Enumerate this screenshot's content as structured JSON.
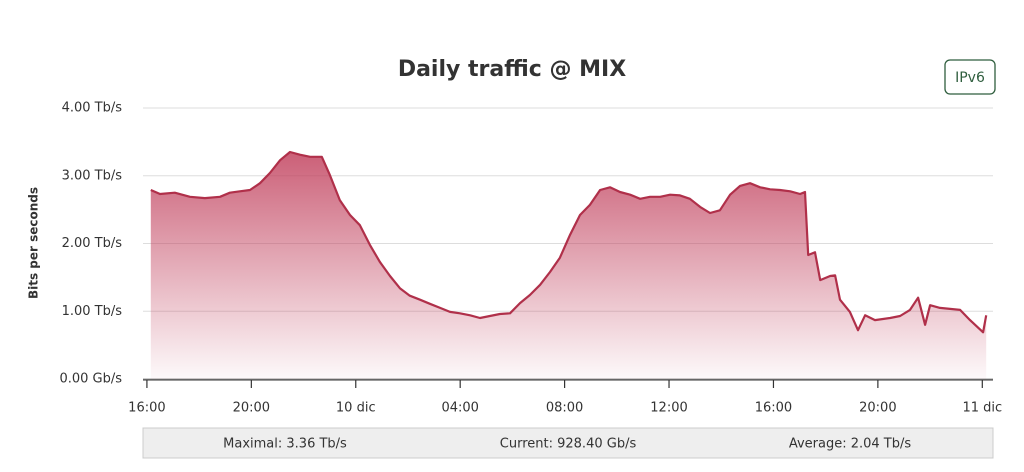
{
  "chart_data": {
    "type": "area",
    "title": "Daily traffic @ MIX",
    "badge": "IPv6",
    "ylabel": "Bits per seconds",
    "color": "#b0304a",
    "x": [
      0.15,
      0.5,
      1.07,
      1.65,
      2.22,
      2.8,
      3.18,
      3.56,
      3.95,
      4.33,
      4.71,
      5.1,
      5.48,
      5.86,
      6.25,
      6.7,
      7.01,
      7.39,
      7.78,
      8.16,
      8.54,
      8.92,
      9.31,
      9.69,
      10.07,
      10.46,
      10.84,
      11.23,
      11.61,
      11.99,
      12.38,
      12.76,
      13.14,
      13.52,
      13.91,
      14.29,
      14.67,
      15.06,
      15.44,
      15.82,
      16.21,
      16.59,
      16.97,
      17.36,
      17.74,
      18.12,
      18.51,
      18.89,
      19.27,
      19.66,
      20.04,
      20.42,
      20.8,
      21.19,
      21.57,
      21.95,
      22.34,
      22.72,
      23.1,
      23.49,
      23.87,
      24.25,
      24.64,
      25.02,
      25.21,
      25.33,
      25.59,
      25.79,
      26.17,
      26.36,
      26.55,
      26.93,
      27.24,
      27.51,
      27.89,
      28.47,
      28.85,
      29.23,
      29.54,
      29.81,
      30.0,
      30.38,
      31.15,
      31.53,
      32.03,
      32.15
    ],
    "values": [
      2.79,
      2.73,
      2.75,
      2.69,
      2.67,
      2.69,
      2.75,
      2.77,
      2.79,
      2.89,
      3.04,
      3.23,
      3.35,
      3.31,
      3.28,
      3.28,
      3.01,
      2.64,
      2.42,
      2.27,
      1.98,
      1.73,
      1.52,
      1.34,
      1.23,
      1.17,
      1.11,
      1.05,
      0.99,
      0.97,
      0.94,
      0.9,
      0.93,
      0.96,
      0.97,
      1.12,
      1.24,
      1.39,
      1.58,
      1.79,
      2.13,
      2.42,
      2.57,
      2.79,
      2.83,
      2.76,
      2.72,
      2.66,
      2.69,
      2.69,
      2.72,
      2.71,
      2.66,
      2.54,
      2.45,
      2.49,
      2.72,
      2.85,
      2.89,
      2.83,
      2.8,
      2.79,
      2.77,
      2.73,
      2.76,
      1.83,
      1.87,
      1.46,
      1.52,
      1.53,
      1.17,
      0.99,
      0.72,
      0.94,
      0.87,
      0.9,
      0.93,
      1.02,
      1.2,
      0.8,
      1.09,
      1.05,
      1.02,
      0.87,
      0.69,
      0.94
    ],
    "xlim": [
      -0.15,
      32.41
    ],
    "xticks": [
      {
        "value": 0,
        "label": "16:00"
      },
      {
        "value": 4,
        "label": "20:00"
      },
      {
        "value": 8,
        "label": "10 dic"
      },
      {
        "value": 12,
        "label": "04:00"
      },
      {
        "value": 16,
        "label": "08:00"
      },
      {
        "value": 20,
        "label": "12:00"
      },
      {
        "value": 24,
        "label": "16:00"
      },
      {
        "value": 28,
        "label": "20:00"
      },
      {
        "value": 32,
        "label": "11 dic"
      }
    ],
    "ylim": [
      0,
      4
    ],
    "yticks": [
      {
        "value": 0,
        "label": "0.00 Gb/s"
      },
      {
        "value": 1,
        "label": "1.00 Tb/s"
      },
      {
        "value": 2,
        "label": "2.00 Tb/s"
      },
      {
        "value": 3,
        "label": "3.00 Tb/s"
      },
      {
        "value": 4,
        "label": "4.00 Tb/s"
      }
    ],
    "grid": true,
    "footer": [
      "Maximal: 3.36 Tb/s",
      "Current: 928.40 Gb/s",
      "Average: 2.04 Tb/s"
    ]
  }
}
